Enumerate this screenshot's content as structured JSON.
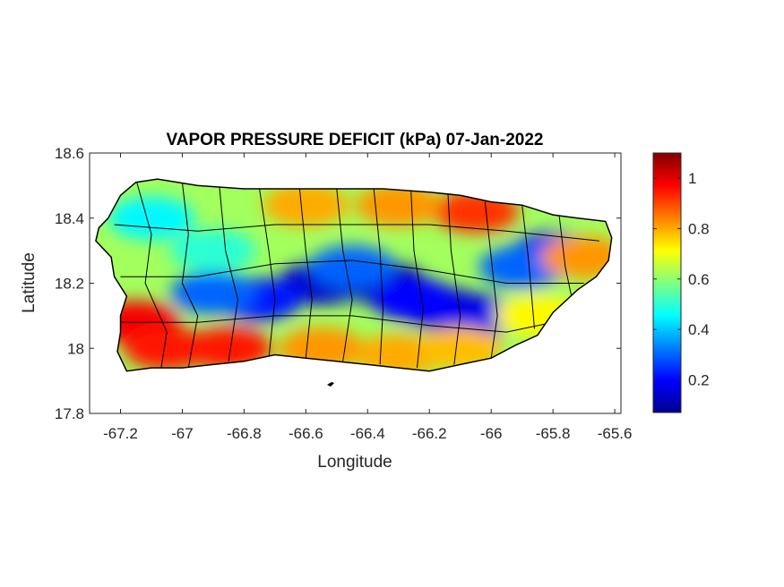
{
  "chart_data": {
    "type": "heatmap",
    "title": "VAPOR PRESSURE DEFICIT (kPa) 07-Jan-2022",
    "xlabel": "Longitude",
    "ylabel": "Latitude",
    "xlim": [
      -67.3,
      -65.58
    ],
    "ylim": [
      17.8,
      18.6
    ],
    "xticks": [
      -67.2,
      -67,
      -66.8,
      -66.6,
      -66.4,
      -66.2,
      -66,
      -65.8,
      -65.6
    ],
    "xtick_labels": [
      "-67.2",
      "-67",
      "-66.8",
      "-66.6",
      "-66.4",
      "-66.2",
      "-66",
      "-65.8",
      "-65.6"
    ],
    "yticks": [
      17.8,
      18,
      18.2,
      18.4,
      18.6
    ],
    "ytick_labels": [
      "17.8",
      "18",
      "18.2",
      "18.4",
      "18.6"
    ],
    "colorbar": {
      "colormap": "jet",
      "range": [
        0.07,
        1.1
      ],
      "ticks": [
        0.2,
        0.4,
        0.6,
        0.8,
        1
      ],
      "tick_labels": [
        "0.2",
        "0.4",
        "0.6",
        "0.8",
        "1"
      ]
    },
    "coastline_color": "#000000",
    "background_color": "#ffffff",
    "field_blobs": [
      {
        "lon": -66.35,
        "lat": 18.2,
        "value": 0.12
      },
      {
        "lon": -66.55,
        "lat": 18.2,
        "value": 0.15
      },
      {
        "lon": -66.75,
        "lat": 18.15,
        "value": 0.22
      },
      {
        "lon": -66.9,
        "lat": 18.17,
        "value": 0.3
      },
      {
        "lon": -66.15,
        "lat": 18.12,
        "value": 0.12
      },
      {
        "lon": -66.05,
        "lat": 18.1,
        "value": 0.18
      },
      {
        "lon": -66.25,
        "lat": 18.15,
        "value": 0.2
      },
      {
        "lon": -65.8,
        "lat": 18.29,
        "value": 0.2
      },
      {
        "lon": -65.9,
        "lat": 18.25,
        "value": 0.3
      },
      {
        "lon": -66.45,
        "lat": 18.25,
        "value": 0.3
      },
      {
        "lon": -67.15,
        "lat": 18.08,
        "value": 0.98
      },
      {
        "lon": -67.05,
        "lat": 18.0,
        "value": 0.95
      },
      {
        "lon": -66.85,
        "lat": 18.0,
        "value": 0.95
      },
      {
        "lon": -66.55,
        "lat": 18.0,
        "value": 0.82
      },
      {
        "lon": -66.3,
        "lat": 17.98,
        "value": 0.8
      },
      {
        "lon": -66.1,
        "lat": 18.0,
        "value": 0.78
      },
      {
        "lon": -66.05,
        "lat": 18.42,
        "value": 0.92
      },
      {
        "lon": -66.3,
        "lat": 18.44,
        "value": 0.82
      },
      {
        "lon": -66.6,
        "lat": 18.44,
        "value": 0.8
      },
      {
        "lon": -65.7,
        "lat": 18.28,
        "value": 0.82
      },
      {
        "lon": -65.85,
        "lat": 18.1,
        "value": 0.72
      },
      {
        "lon": -66.9,
        "lat": 18.3,
        "value": 0.5
      },
      {
        "lon": -67.1,
        "lat": 18.4,
        "value": 0.45
      }
    ]
  }
}
